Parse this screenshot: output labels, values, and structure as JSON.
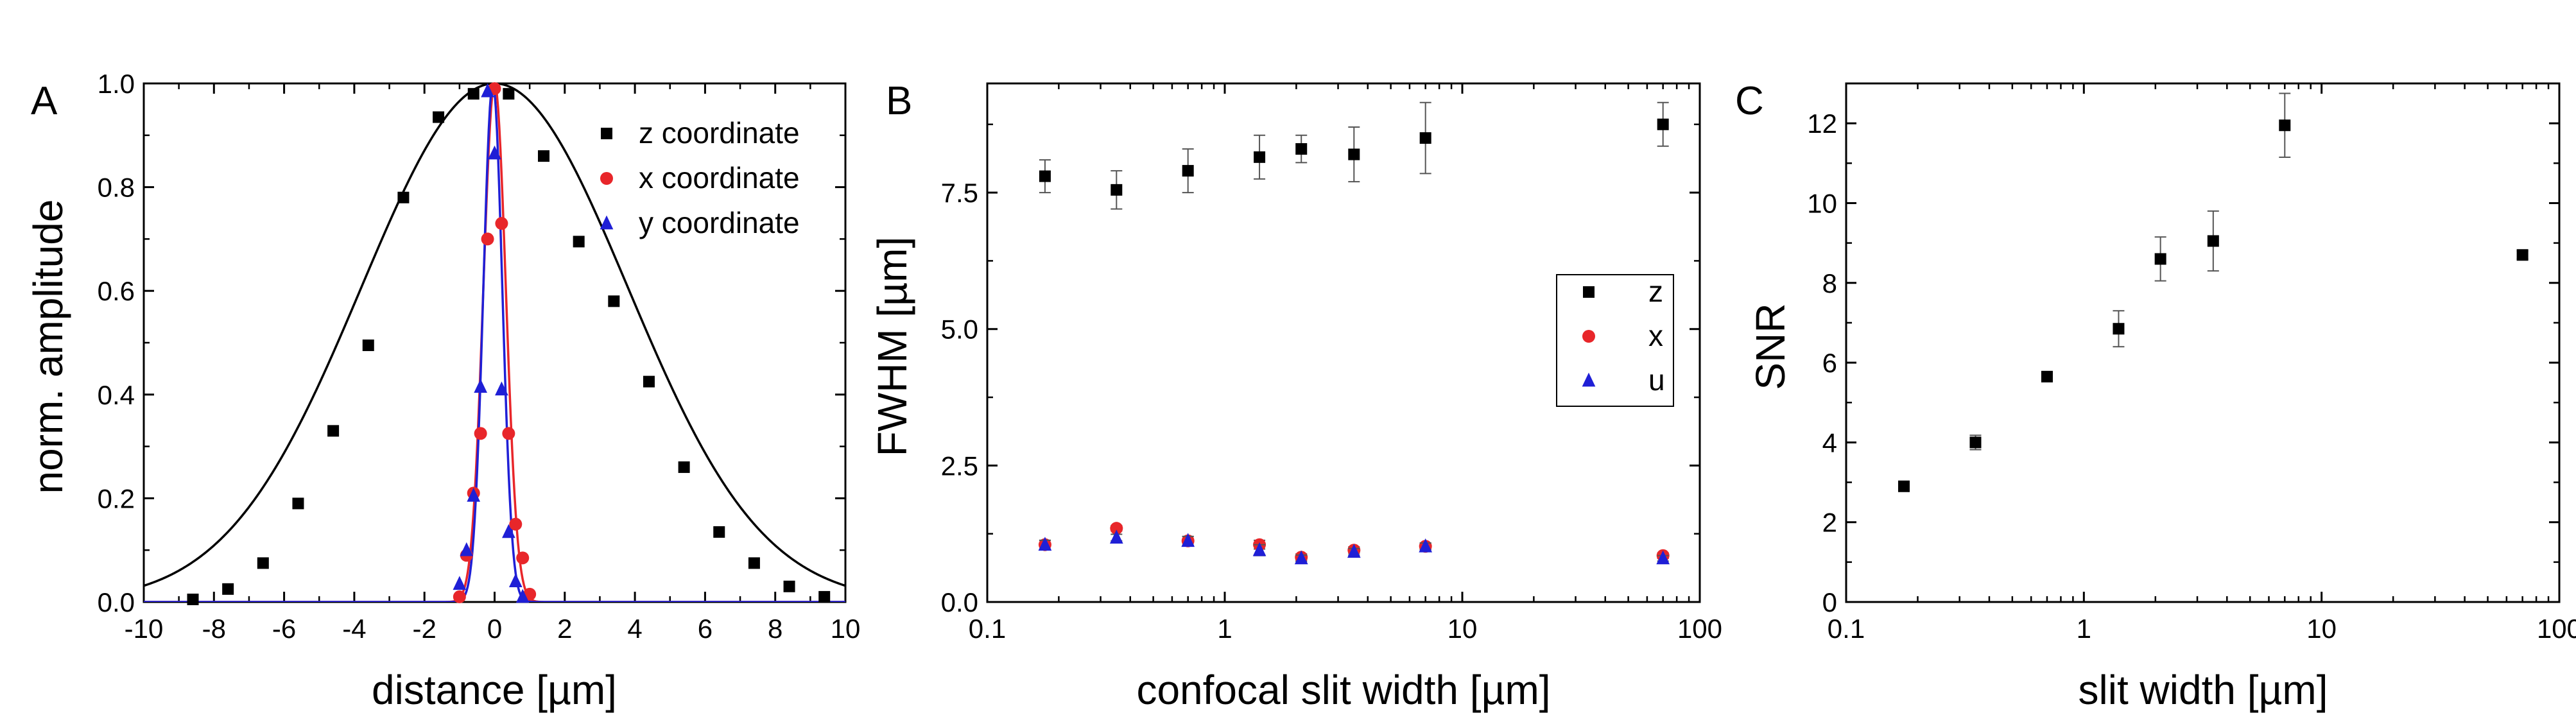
{
  "chart_data": [
    {
      "panel": "A",
      "type": "scatter",
      "xlabel": "distance [µm]",
      "ylabel": "norm. amplitude",
      "xlim": [
        -10,
        10
      ],
      "ylim": [
        0,
        1.0
      ],
      "x_scale": "linear",
      "xticks": [
        -10,
        -8,
        -6,
        -4,
        -2,
        0,
        2,
        4,
        6,
        8,
        10
      ],
      "yticks": [
        0.0,
        0.2,
        0.4,
        0.6,
        0.8,
        1.0
      ],
      "ytick_labels": [
        "0.0",
        "0.2",
        "0.4",
        "0.6",
        "0.8",
        "1.0"
      ],
      "legend_position": "top-right",
      "fit_curves": [
        {
          "series": "z coordinate",
          "model": "gaussian",
          "center": 0,
          "sigma": 3.8,
          "color": "#000000"
        },
        {
          "series": "x coordinate",
          "model": "gaussian",
          "center": 0,
          "sigma": 0.32,
          "color": "#e8262a"
        },
        {
          "series": "y coordinate",
          "model": "gaussian",
          "center": -0.05,
          "sigma": 0.27,
          "color": "#1f1fd6"
        }
      ],
      "series": [
        {
          "name": "z coordinate",
          "marker": "square",
          "color": "#000000",
          "x": [
            -8.6,
            -7.6,
            -6.6,
            -5.6,
            -4.6,
            -3.6,
            -2.6,
            -1.6,
            -0.6,
            0.4,
            1.4,
            2.4,
            3.4,
            4.4,
            5.4,
            6.4,
            7.4,
            8.4,
            9.4
          ],
          "y": [
            0.005,
            0.025,
            0.075,
            0.19,
            0.33,
            0.495,
            0.78,
            0.935,
            0.98,
            0.98,
            0.86,
            0.695,
            0.58,
            0.425,
            0.26,
            0.135,
            0.075,
            0.03,
            0.01
          ]
        },
        {
          "name": "x coordinate",
          "marker": "circle",
          "color": "#e8262a",
          "x": [
            -1.0,
            -0.8,
            -0.6,
            -0.4,
            -0.2,
            0.0,
            0.2,
            0.4,
            0.6,
            0.8,
            1.0
          ],
          "y": [
            0.01,
            0.09,
            0.21,
            0.325,
            0.7,
            0.99,
            0.73,
            0.325,
            0.15,
            0.085,
            0.015
          ]
        },
        {
          "name": "y coordinate",
          "marker": "triangle",
          "color": "#1f1fd6",
          "x": [
            -1.0,
            -0.8,
            -0.6,
            -0.4,
            -0.2,
            0.0,
            0.2,
            0.4,
            0.6,
            0.8
          ],
          "y": [
            0.035,
            0.1,
            0.205,
            0.415,
            0.985,
            0.865,
            0.41,
            0.135,
            0.04,
            0.01
          ]
        }
      ]
    },
    {
      "panel": "B",
      "type": "scatter",
      "xlabel": "confocal slit width [µm]",
      "ylabel": "FWHM [µm]",
      "xlim": [
        0.1,
        100
      ],
      "ylim": [
        0,
        9.5
      ],
      "x_scale": "log",
      "xticks": [
        0.1,
        1,
        10,
        100
      ],
      "xtick_labels": [
        "0.1",
        "1",
        "10",
        "100"
      ],
      "yticks": [
        0.0,
        2.5,
        5.0,
        7.5
      ],
      "ytick_labels": [
        "0.0",
        "2.5",
        "5.0",
        "7.5"
      ],
      "legend_position": "center-right",
      "series": [
        {
          "name": "z",
          "marker": "square",
          "color": "#000000",
          "x": [
            0.175,
            0.35,
            0.7,
            1.4,
            2.1,
            3.5,
            7.0,
            70
          ],
          "y": [
            7.8,
            7.55,
            7.9,
            8.15,
            8.3,
            8.2,
            8.5,
            8.75
          ],
          "err": [
            0.3,
            0.35,
            0.4,
            0.4,
            0.25,
            0.5,
            0.65,
            0.4
          ]
        },
        {
          "name": "x",
          "marker": "circle",
          "color": "#e8262a",
          "x": [
            0.175,
            0.35,
            0.7,
            1.4,
            2.1,
            3.5,
            7.0,
            70
          ],
          "y": [
            1.05,
            1.35,
            1.12,
            1.05,
            0.82,
            0.95,
            1.02,
            0.85
          ],
          "err": [
            0.08,
            0.05,
            0.08,
            0.08,
            0.06,
            0.06,
            0.06,
            0.05
          ]
        },
        {
          "name": "u",
          "marker": "triangle",
          "color": "#1f1fd6",
          "x": [
            0.175,
            0.35,
            0.7,
            1.4,
            2.1,
            3.5,
            7.0,
            70
          ],
          "y": [
            1.05,
            1.18,
            1.12,
            0.95,
            0.8,
            0.92,
            1.02,
            0.8
          ],
          "err": [
            0.08,
            0.06,
            0.08,
            0.1,
            0.06,
            0.06,
            0.06,
            0.05
          ]
        }
      ]
    },
    {
      "panel": "C",
      "type": "scatter",
      "xlabel": "slit width [µm]",
      "ylabel": "SNR",
      "xlim": [
        0.1,
        100
      ],
      "ylim": [
        0,
        13
      ],
      "x_scale": "log",
      "xticks": [
        0.1,
        1,
        10,
        100
      ],
      "xtick_labels": [
        "0.1",
        "1",
        "10",
        "100"
      ],
      "yticks": [
        0,
        2,
        4,
        6,
        8,
        10,
        12
      ],
      "ytick_labels": [
        "0",
        "2",
        "4",
        "6",
        "8",
        "10",
        "12"
      ],
      "series": [
        {
          "name": "",
          "marker": "square",
          "color": "#000000",
          "x": [
            0.175,
            0.35,
            0.7,
            1.4,
            2.1,
            3.5,
            7.0,
            70
          ],
          "y": [
            2.9,
            4.0,
            5.65,
            6.85,
            8.6,
            9.05,
            11.95,
            8.7
          ],
          "err": [
            0.05,
            0.18,
            0.1,
            0.45,
            0.55,
            0.75,
            0.8,
            0.1
          ]
        }
      ]
    }
  ]
}
